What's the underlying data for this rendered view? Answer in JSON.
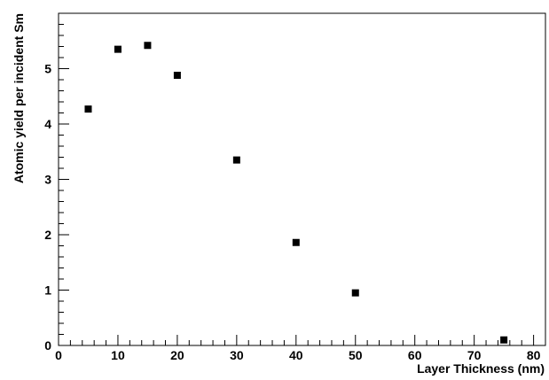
{
  "chart_data": {
    "type": "scatter",
    "title": "",
    "xlabel": "Layer Thickness (nm)",
    "ylabel": "Atomic yield per incident Sm",
    "xlim": [
      0,
      82
    ],
    "ylim": [
      0,
      6
    ],
    "xticks": [
      0,
      10,
      20,
      30,
      40,
      50,
      60,
      70,
      80
    ],
    "yticks": [
      0,
      1,
      2,
      3,
      4,
      5
    ],
    "x_tick_labels": [
      "0",
      "10",
      "20",
      "30",
      "40",
      "50",
      "60",
      "70",
      "80"
    ],
    "y_tick_labels": [
      "0",
      "1",
      "2",
      "3",
      "4",
      "5"
    ],
    "grid": false,
    "marker": "square",
    "marker_color": "#000000",
    "series": [
      {
        "x": [
          5,
          10,
          15,
          20,
          30,
          40,
          50,
          75
        ],
        "y": [
          4.27,
          5.35,
          5.42,
          4.88,
          3.35,
          1.86,
          0.95,
          0.1
        ]
      }
    ]
  }
}
